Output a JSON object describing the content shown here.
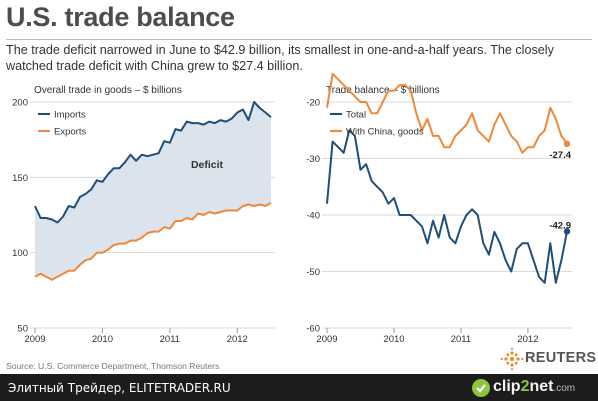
{
  "header": {
    "title": "U.S. trade balance",
    "subtitle": "The trade deficit narrowed in June to $42.9 billion, its smallest in one-and-a-half years. The closely watched trade deficit with China grew to $27.4 billion."
  },
  "source": "Source: U.S. Commerce Department, Thomson Reuters",
  "brand": {
    "reuters": "REUTERS"
  },
  "footer": {
    "text": "Элитный Трейдер, ELITETRADER.RU",
    "clip_a": "clip",
    "clip_b": "2",
    "clip_c": "net",
    "clip_d": ".com"
  },
  "colors": {
    "imports": "#1f4e79",
    "exports": "#f0883a",
    "deficit_fill": "#dbe3ec",
    "grid": "#d9d9d9"
  },
  "chart_data": [
    {
      "type": "area",
      "title": "Overall trade in goods – $ billions",
      "x_ticks": [
        "2009",
        "2010",
        "2011",
        "2012"
      ],
      "ylim": [
        50,
        200
      ],
      "y_ticks": [
        50,
        100,
        150,
        200
      ],
      "x_range": [
        "2009-01",
        "2012-06"
      ],
      "grid": "horizontal",
      "legend": "top-left",
      "fill_label": "Deficit",
      "series": [
        {
          "name": "Imports",
          "values": [
            131,
            123,
            123,
            122,
            120,
            124,
            131,
            130,
            137,
            139,
            142,
            148,
            147,
            152,
            156,
            156,
            160,
            165,
            161,
            165,
            164,
            165,
            166,
            174,
            173,
            182,
            181,
            187,
            186,
            186,
            185,
            187,
            186,
            188,
            187,
            189,
            193,
            195,
            188,
            200,
            196,
            193,
            190
          ]
        },
        {
          "name": "Exports",
          "values": [
            84,
            86,
            84,
            82,
            84,
            86,
            88,
            88,
            92,
            95,
            96,
            100,
            100,
            102,
            105,
            106,
            106,
            108,
            108,
            110,
            113,
            114,
            114,
            117,
            116,
            121,
            121,
            123,
            122,
            126,
            125,
            127,
            126,
            127,
            128,
            128,
            128,
            131,
            132,
            131,
            132,
            131,
            133
          ]
        }
      ]
    },
    {
      "type": "line",
      "title": "Trade balance – $ billions",
      "x_ticks": [
        "2009",
        "2010",
        "2011",
        "2012"
      ],
      "ylim": [
        -60,
        -20
      ],
      "y_ticks": [
        -60,
        -50,
        -40,
        -30,
        -20
      ],
      "x_range": [
        "2009-01",
        "2012-06"
      ],
      "grid": "horizontal",
      "legend": "top-left",
      "series": [
        {
          "name": "Total",
          "values": [
            -38,
            -27,
            -28,
            -29,
            -25,
            -26,
            -32,
            -31,
            -34,
            -35,
            -36,
            -38,
            -37,
            -40,
            -40,
            -40,
            -41,
            -42,
            -45,
            -41,
            -44,
            -40,
            -44,
            -45,
            -42,
            -40,
            -39,
            -40,
            -45,
            -47,
            -43,
            -45,
            -48,
            -50,
            -46,
            -45,
            -45,
            -48,
            -51,
            -52,
            -45,
            -52,
            -48,
            -42.9
          ]
        },
        {
          "name": "With China, goods",
          "values": [
            -21,
            -15,
            -16,
            -17,
            -18,
            -19,
            -20,
            -20,
            -22,
            -22,
            -20,
            -18,
            -18,
            -17,
            -17,
            -18,
            -22,
            -25,
            -23,
            -26,
            -26,
            -28,
            -28,
            -26,
            -25,
            -24,
            -22,
            -25,
            -26,
            -27,
            -24,
            -22,
            -24,
            -26,
            -27,
            -29,
            -28,
            -28,
            -26,
            -25,
            -21,
            -23,
            -26,
            -27.4
          ]
        }
      ],
      "end_labels": [
        "-27.4",
        "-42.9"
      ]
    }
  ]
}
